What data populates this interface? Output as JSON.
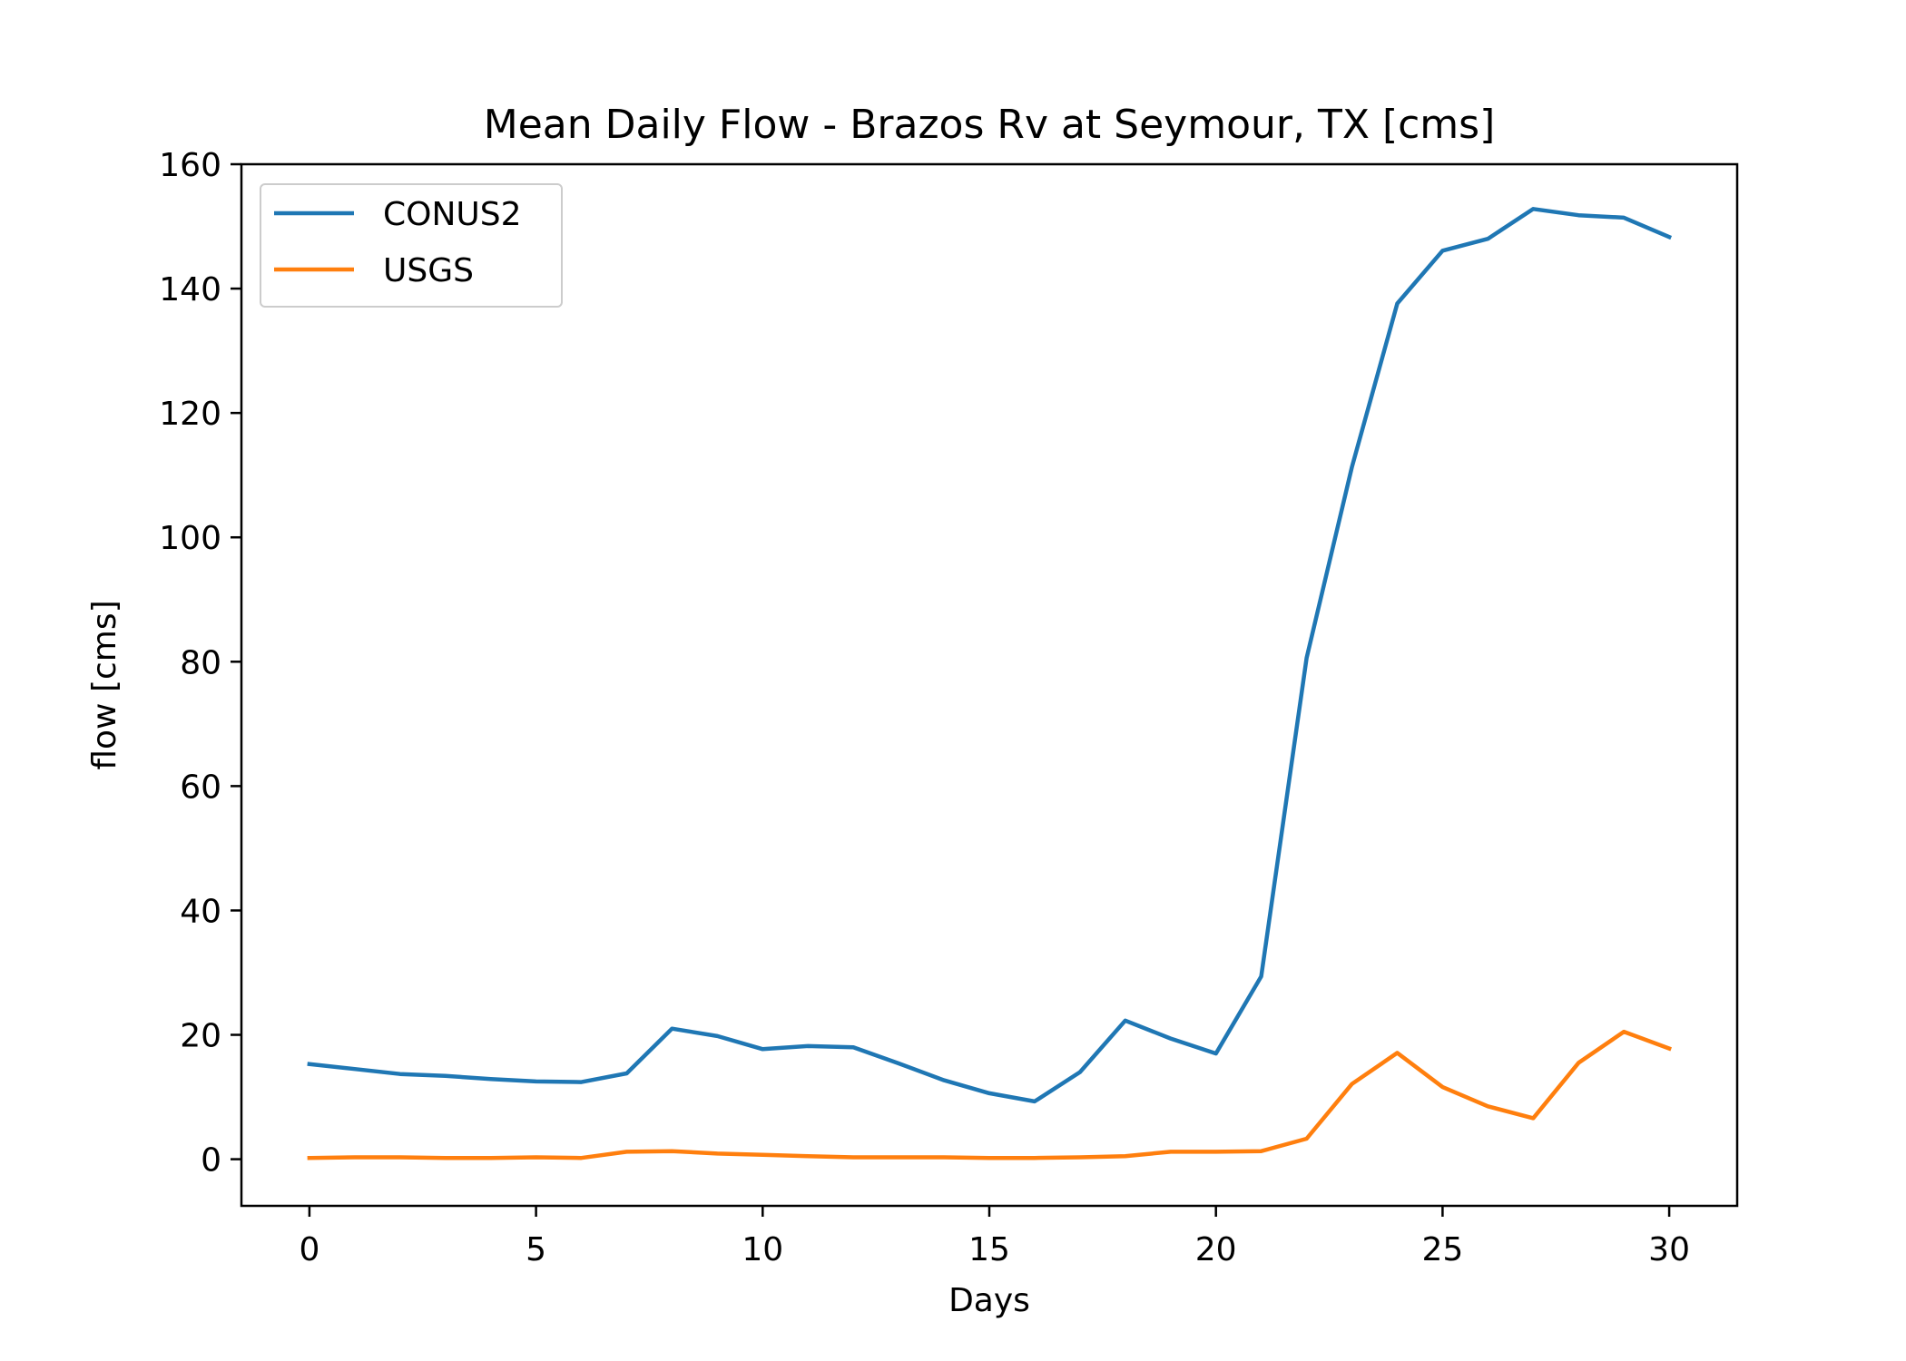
{
  "chart_data": {
    "type": "line",
    "title": "Mean Daily Flow - Brazos Rv at Seymour, TX [cms]",
    "xlabel": "Days",
    "ylabel": "flow [cms]",
    "xlim": [
      -1.5,
      31.5
    ],
    "ylim": [
      -7.5,
      160
    ],
    "xticks": [
      0,
      5,
      10,
      15,
      20,
      25,
      30
    ],
    "yticks": [
      0,
      20,
      40,
      60,
      80,
      100,
      120,
      140,
      160
    ],
    "grid": false,
    "legend": "top-left",
    "x": [
      0,
      1,
      2,
      3,
      4,
      5,
      6,
      7,
      8,
      9,
      10,
      11,
      12,
      13,
      14,
      15,
      16,
      17,
      18,
      19,
      20,
      21,
      22,
      23,
      24,
      25,
      26,
      27,
      28,
      29,
      30
    ],
    "series": [
      {
        "name": "CONUS2",
        "color": "#1f77b4",
        "values": [
          15.3,
          14.5,
          13.7,
          13.4,
          12.9,
          12.5,
          12.4,
          13.8,
          21.0,
          19.8,
          17.7,
          18.2,
          18.0,
          15.4,
          12.7,
          10.6,
          9.3,
          14.0,
          22.3,
          19.4,
          17.0,
          29.4,
          80.6,
          111.3,
          137.6,
          146.1,
          148.0,
          152.8,
          151.8,
          151.4,
          148.3
        ]
      },
      {
        "name": "USGS",
        "color": "#ff7f0e",
        "values": [
          0.2,
          0.3,
          0.3,
          0.2,
          0.2,
          0.3,
          0.2,
          1.2,
          1.3,
          0.9,
          0.7,
          0.5,
          0.3,
          0.3,
          0.3,
          0.2,
          0.2,
          0.3,
          0.5,
          1.2,
          1.2,
          1.3,
          3.3,
          12.1,
          17.1,
          11.6,
          8.5,
          6.6,
          15.5,
          20.5,
          17.8
        ]
      }
    ]
  }
}
